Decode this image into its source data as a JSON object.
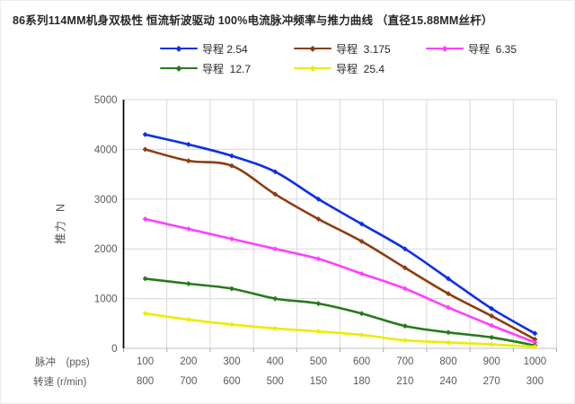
{
  "title": "86系列114MM机身双极性 恒流斩波驱动 100%电流脉冲频率与推力曲线 （直径15.88MM丝杆）",
  "chart_data": {
    "type": "line",
    "title": "86系列114MM机身双极性 恒流斩波驱动 100%电流脉冲频率与推力曲线 （直径15.88MM丝杆）",
    "ylabel": "推力  N",
    "ylim": [
      0,
      5000
    ],
    "y_ticks": [
      0,
      1000,
      2000,
      3000,
      4000,
      5000
    ],
    "grid": true,
    "legend_position": "top",
    "x_rows": [
      {
        "header": "脉冲　(pps)",
        "ticks": [
          "100",
          "200",
          "300",
          "400",
          "500",
          "600",
          "700",
          "800",
          "900",
          "1000"
        ]
      },
      {
        "header": "转速 (r/min)",
        "ticks": [
          "800",
          "700",
          "600",
          "500",
          "150",
          "180",
          "210",
          "240",
          "270",
          "300"
        ]
      }
    ],
    "series": [
      {
        "name": "导程 2.54",
        "color": "#0d2fe8",
        "values": [
          4300,
          4100,
          3870,
          3550,
          3000,
          2500,
          2000,
          1400,
          800,
          300
        ]
      },
      {
        "name": "导程  3.175",
        "color": "#8d3c10",
        "values": [
          4000,
          3770,
          3670,
          3100,
          2600,
          2150,
          1620,
          1100,
          650,
          180
        ]
      },
      {
        "name": "导程  6.35",
        "color": "#ff40ff",
        "values": [
          2600,
          2400,
          2200,
          2000,
          1800,
          1500,
          1200,
          820,
          460,
          120
        ]
      },
      {
        "name": "导程  12.7",
        "color": "#267a1a",
        "values": [
          1400,
          1300,
          1200,
          1000,
          900,
          700,
          450,
          320,
          220,
          60
        ]
      },
      {
        "name": "导程  25.4",
        "color": "#ecec00",
        "values": [
          700,
          580,
          480,
          400,
          340,
          270,
          160,
          120,
          80,
          30
        ]
      }
    ],
    "colors": {
      "gridline": "#d9d9d9",
      "y_axis": "#000000",
      "x_axis": "#bfbfbf",
      "tick_text": "#595959"
    }
  }
}
